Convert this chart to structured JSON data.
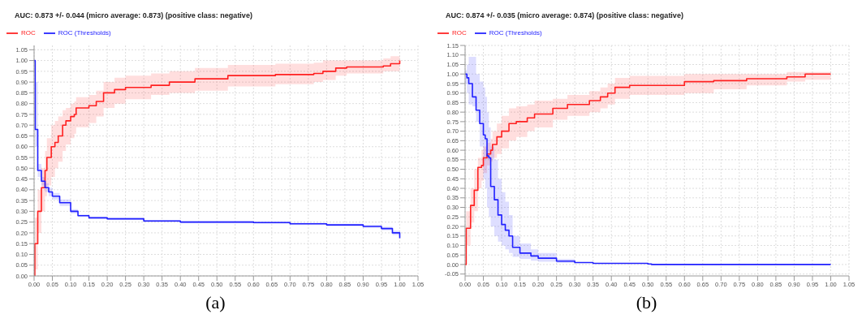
{
  "chart_data": [
    {
      "type": "step",
      "title": "AUC: 0.873 +/- 0.044 (micro average: 0.873) (positive class: negative)",
      "legend": "top left",
      "grid": true,
      "xlim": [
        0,
        1.05
      ],
      "ylim": [
        0,
        1.07
      ],
      "xticks": [
        {
          "value": 0,
          "label": "0.00"
        },
        {
          "value": 0.05,
          "label": "0.05"
        },
        {
          "value": 0.1,
          "label": "0.10"
        },
        {
          "value": 0.15,
          "label": "0.15"
        },
        {
          "value": 0.2,
          "label": "0.20"
        },
        {
          "value": 0.25,
          "label": "0.25"
        },
        {
          "value": 0.3,
          "label": "0.30"
        },
        {
          "value": 0.35,
          "label": "0.35"
        },
        {
          "value": 0.4,
          "label": "0.40"
        },
        {
          "value": 0.45,
          "label": "0.45"
        },
        {
          "value": 0.5,
          "label": "0.50"
        },
        {
          "value": 0.55,
          "label": "0.55"
        },
        {
          "value": 0.6,
          "label": "0.60"
        },
        {
          "value": 0.65,
          "label": "0.65"
        },
        {
          "value": 0.7,
          "label": "0.70"
        },
        {
          "value": 0.75,
          "label": "0.75"
        },
        {
          "value": 0.8,
          "label": "0.80"
        },
        {
          "value": 0.85,
          "label": "0.85"
        },
        {
          "value": 0.9,
          "label": "0.90"
        },
        {
          "value": 0.95,
          "label": "0.95"
        },
        {
          "value": 1,
          "label": "1.00"
        },
        {
          "value": 1.05,
          "label": "1.05"
        }
      ],
      "yticks": [
        {
          "value": 0,
          "label": "0.00"
        },
        {
          "value": 0.05,
          "label": "0.05"
        },
        {
          "value": 0.1,
          "label": "0.10"
        },
        {
          "value": 0.15,
          "label": "0.15"
        },
        {
          "value": 0.2,
          "label": "0.20"
        },
        {
          "value": 0.25,
          "label": "0.25"
        },
        {
          "value": 0.3,
          "label": "0.30"
        },
        {
          "value": 0.35,
          "label": "0.35"
        },
        {
          "value": 0.4,
          "label": "0.40"
        },
        {
          "value": 0.45,
          "label": "0.45"
        },
        {
          "value": 0.5,
          "label": "0.50"
        },
        {
          "value": 0.55,
          "label": "0.55"
        },
        {
          "value": 0.6,
          "label": "0.60"
        },
        {
          "value": 0.65,
          "label": "0.65"
        },
        {
          "value": 0.7,
          "label": "0.70"
        },
        {
          "value": 0.75,
          "label": "0.75"
        },
        {
          "value": 0.8,
          "label": "0.80"
        },
        {
          "value": 0.85,
          "label": "0.85"
        },
        {
          "value": 0.9,
          "label": "0.90"
        },
        {
          "value": 0.95,
          "label": "0.95"
        },
        {
          "value": 1,
          "label": "1.00"
        },
        {
          "value": 1.05,
          "label": "1.05"
        }
      ],
      "series": [
        {
          "name": "ROC",
          "color": "#ff2020",
          "x": [
            0,
            0.002,
            0.01,
            0.02,
            0.03,
            0.035,
            0.047,
            0.057,
            0.066,
            0.078,
            0.087,
            0.1,
            0.11,
            0.115,
            0.15,
            0.17,
            0.19,
            0.22,
            0.25,
            0.32,
            0.37,
            0.44,
            0.53,
            0.66,
            0.765,
            0.79,
            0.825,
            0.855,
            0.955,
            0.975,
            1.0
          ],
          "values": [
            0,
            0.15,
            0.3,
            0.41,
            0.49,
            0.55,
            0.6,
            0.62,
            0.65,
            0.7,
            0.72,
            0.74,
            0.75,
            0.78,
            0.79,
            0.81,
            0.85,
            0.865,
            0.875,
            0.885,
            0.9,
            0.915,
            0.93,
            0.935,
            0.94,
            0.95,
            0.965,
            0.97,
            0.975,
            0.985,
            1.0
          ],
          "lower": [
            0,
            0.03,
            0.2,
            0.3,
            0.37,
            0.42,
            0.46,
            0.5,
            0.53,
            0.58,
            0.61,
            0.64,
            0.66,
            0.69,
            0.71,
            0.74,
            0.78,
            0.8,
            0.82,
            0.84,
            0.85,
            0.86,
            0.88,
            0.89,
            0.9,
            0.91,
            0.93,
            0.94,
            0.95,
            0.95,
            0.97
          ],
          "upper": [
            0.05,
            0.27,
            0.4,
            0.5,
            0.58,
            0.64,
            0.7,
            0.72,
            0.74,
            0.77,
            0.78,
            0.8,
            0.81,
            0.83,
            0.84,
            0.86,
            0.9,
            0.92,
            0.93,
            0.94,
            0.95,
            0.965,
            0.98,
            0.985,
            0.99,
            1.0,
            1.0,
            1.0,
            1.01,
            1.02,
            1.02
          ]
        },
        {
          "name": "ROC (Thresholds)",
          "color": "#2020ff",
          "x": [
            0,
            0.003,
            0.01,
            0.02,
            0.03,
            0.04,
            0.05,
            0.07,
            0.1,
            0.12,
            0.15,
            0.2,
            0.3,
            0.4,
            0.6,
            0.7,
            0.8,
            0.9,
            0.95,
            0.98,
            1.0
          ],
          "values": [
            1.0,
            0.68,
            0.49,
            0.44,
            0.41,
            0.39,
            0.37,
            0.34,
            0.3,
            0.28,
            0.27,
            0.265,
            0.255,
            0.25,
            0.248,
            0.242,
            0.237,
            0.23,
            0.22,
            0.2,
            0.175
          ],
          "lower": [
            0.95,
            0.6,
            0.46,
            0.42,
            0.39,
            0.37,
            0.355,
            0.325,
            0.29,
            0.275,
            0.265,
            0.26,
            0.25,
            0.245,
            0.243,
            0.237,
            0.232,
            0.224,
            0.212,
            0.19,
            0.165
          ],
          "upper": [
            1.0,
            0.9,
            0.52,
            0.46,
            0.43,
            0.41,
            0.385,
            0.355,
            0.31,
            0.285,
            0.275,
            0.27,
            0.26,
            0.255,
            0.253,
            0.247,
            0.242,
            0.236,
            0.228,
            0.21,
            0.185
          ]
        }
      ],
      "annotations": [
        "(a)"
      ]
    },
    {
      "type": "step",
      "title": "AUC: 0.874 +/- 0.035 (micro average: 0.874) (positive class: negative)",
      "legend": "top left",
      "grid": true,
      "xlim": [
        0,
        1.05
      ],
      "ylim": [
        -0.06,
        1.15
      ],
      "xticks": [
        {
          "value": 0,
          "label": "0.00"
        },
        {
          "value": 0.05,
          "label": "0.05"
        },
        {
          "value": 0.1,
          "label": "0.10"
        },
        {
          "value": 0.15,
          "label": "0.15"
        },
        {
          "value": 0.2,
          "label": "0.20"
        },
        {
          "value": 0.25,
          "label": "0.25"
        },
        {
          "value": 0.3,
          "label": "0.30"
        },
        {
          "value": 0.35,
          "label": "0.35"
        },
        {
          "value": 0.4,
          "label": "0.40"
        },
        {
          "value": 0.45,
          "label": "0.45"
        },
        {
          "value": 0.5,
          "label": "0.50"
        },
        {
          "value": 0.55,
          "label": "0.55"
        },
        {
          "value": 0.6,
          "label": "0.60"
        },
        {
          "value": 0.65,
          "label": "0.65"
        },
        {
          "value": 0.7,
          "label": "0.70"
        },
        {
          "value": 0.75,
          "label": "0.75"
        },
        {
          "value": 0.8,
          "label": "0.80"
        },
        {
          "value": 0.85,
          "label": "0.85"
        },
        {
          "value": 0.9,
          "label": "0.90"
        },
        {
          "value": 0.95,
          "label": "0.95"
        },
        {
          "value": 1,
          "label": "1.00"
        },
        {
          "value": 1.05,
          "label": "1.05"
        }
      ],
      "yticks": [
        {
          "value": -0.05,
          "label": "-0.05"
        },
        {
          "value": 0,
          "label": "0.00"
        },
        {
          "value": 0.05,
          "label": "0.05"
        },
        {
          "value": 0.1,
          "label": "0.10"
        },
        {
          "value": 0.15,
          "label": "0.15"
        },
        {
          "value": 0.2,
          "label": "0.20"
        },
        {
          "value": 0.25,
          "label": "0.25"
        },
        {
          "value": 0.3,
          "label": "0.30"
        },
        {
          "value": 0.35,
          "label": "0.35"
        },
        {
          "value": 0.4,
          "label": "0.40"
        },
        {
          "value": 0.45,
          "label": "0.45"
        },
        {
          "value": 0.5,
          "label": "0.50"
        },
        {
          "value": 0.55,
          "label": "0.55"
        },
        {
          "value": 0.6,
          "label": "0.60"
        },
        {
          "value": 0.65,
          "label": "0.65"
        },
        {
          "value": 0.7,
          "label": "0.70"
        },
        {
          "value": 0.75,
          "label": "0.75"
        },
        {
          "value": 0.8,
          "label": "0.80"
        },
        {
          "value": 0.85,
          "label": "0.85"
        },
        {
          "value": 0.9,
          "label": "0.90"
        },
        {
          "value": 0.95,
          "label": "0.95"
        },
        {
          "value": 1,
          "label": "1.00"
        },
        {
          "value": 1.05,
          "label": "1.05"
        },
        {
          "value": 1.1,
          "label": "1.10"
        },
        {
          "value": 1.15,
          "label": "1.15"
        }
      ],
      "series": [
        {
          "name": "ROC",
          "color": "#ff2020",
          "x": [
            0,
            0.003,
            0.015,
            0.025,
            0.035,
            0.045,
            0.05,
            0.06,
            0.07,
            0.075,
            0.087,
            0.1,
            0.12,
            0.14,
            0.17,
            0.19,
            0.24,
            0.28,
            0.34,
            0.37,
            0.39,
            0.41,
            0.45,
            0.6,
            0.68,
            0.77,
            0.88,
            0.93,
            1.0
          ],
          "values": [
            0,
            0.19,
            0.31,
            0.39,
            0.51,
            0.52,
            0.56,
            0.58,
            0.6,
            0.63,
            0.67,
            0.7,
            0.74,
            0.75,
            0.77,
            0.79,
            0.82,
            0.84,
            0.86,
            0.88,
            0.9,
            0.93,
            0.94,
            0.96,
            0.965,
            0.975,
            0.985,
            1.0,
            1.0
          ],
          "lower": [
            0,
            0.1,
            0.22,
            0.28,
            0.4,
            0.44,
            0.48,
            0.52,
            0.54,
            0.56,
            0.58,
            0.61,
            0.65,
            0.67,
            0.7,
            0.72,
            0.76,
            0.78,
            0.8,
            0.82,
            0.84,
            0.87,
            0.89,
            0.9,
            0.92,
            0.94,
            0.96,
            0.97,
            0.97
          ],
          "upper": [
            0.02,
            0.28,
            0.4,
            0.5,
            0.56,
            0.6,
            0.62,
            0.64,
            0.66,
            0.7,
            0.74,
            0.78,
            0.82,
            0.83,
            0.84,
            0.86,
            0.87,
            0.89,
            0.91,
            0.93,
            0.95,
            0.98,
            0.99,
            1.0,
            1.0,
            1.0,
            1.01,
            1.01,
            1.01
          ]
        },
        {
          "name": "ROC (Thresholds)",
          "color": "#2020ff",
          "x": [
            0,
            0.005,
            0.01,
            0.02,
            0.03,
            0.04,
            0.05,
            0.055,
            0.06,
            0.065,
            0.07,
            0.08,
            0.09,
            0.1,
            0.11,
            0.12,
            0.13,
            0.15,
            0.18,
            0.2,
            0.25,
            0.3,
            0.35,
            0.5,
            0.51,
            1.0
          ],
          "values": [
            1.0,
            0.98,
            0.95,
            0.88,
            0.81,
            0.74,
            0.68,
            0.66,
            0.57,
            0.56,
            0.41,
            0.34,
            0.26,
            0.21,
            0.18,
            0.15,
            0.09,
            0.06,
            0.045,
            0.033,
            0.018,
            0.01,
            0.006,
            0.003,
            0,
            0
          ],
          "lower": [
            0.95,
            0.9,
            0.84,
            0.83,
            0.75,
            0.62,
            0.45,
            0.4,
            0.3,
            0.25,
            0.2,
            0.15,
            0.12,
            0.1,
            0.08,
            0.06,
            0.04,
            0.03,
            0.02,
            0.015,
            0.008,
            0.005,
            null,
            null,
            null,
            null
          ],
          "upper": [
            1.02,
            1.05,
            1.09,
            1.09,
            1.0,
            0.96,
            0.93,
            0.88,
            0.8,
            0.72,
            0.62,
            0.55,
            0.45,
            0.38,
            0.33,
            0.26,
            0.15,
            0.11,
            0.08,
            0.06,
            0.03,
            0.016,
            null,
            null,
            null,
            null
          ]
        }
      ],
      "annotations": [
        "(b)"
      ]
    }
  ]
}
